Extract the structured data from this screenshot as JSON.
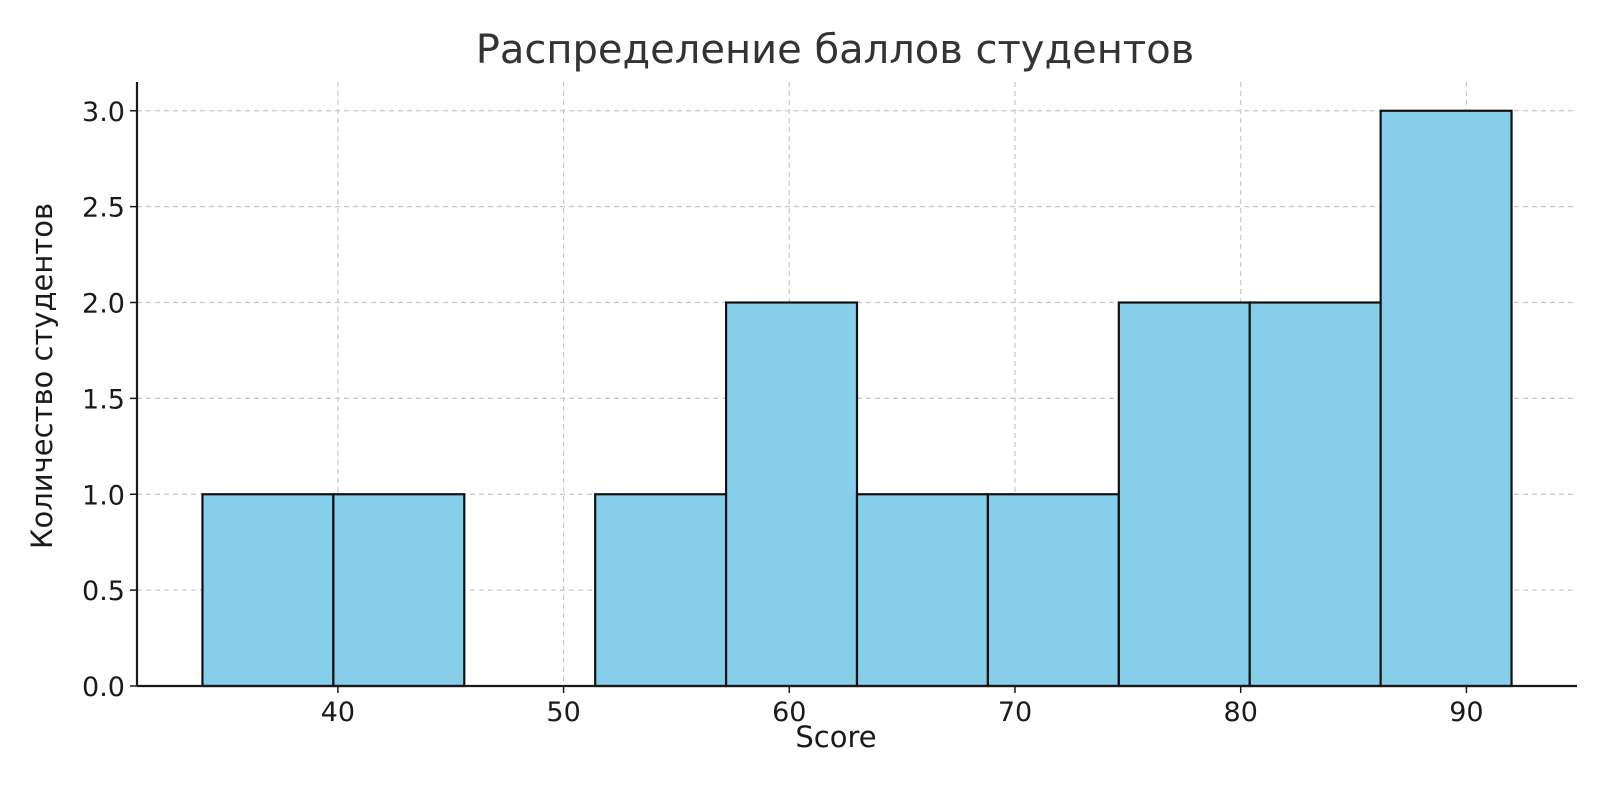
{
  "chart_data": {
    "type": "bar",
    "title": "Распределение баллов студентов",
    "xlabel": "Score",
    "ylabel": "Количество студентов",
    "bins": [
      {
        "start": 34.0,
        "end": 39.8,
        "count": 1
      },
      {
        "start": 39.8,
        "end": 45.6,
        "count": 1
      },
      {
        "start": 45.6,
        "end": 51.4,
        "count": 0
      },
      {
        "start": 51.4,
        "end": 57.2,
        "count": 1
      },
      {
        "start": 57.2,
        "end": 63.0,
        "count": 2
      },
      {
        "start": 63.0,
        "end": 68.8,
        "count": 1
      },
      {
        "start": 68.8,
        "end": 74.6,
        "count": 1
      },
      {
        "start": 74.6,
        "end": 80.4,
        "count": 2
      },
      {
        "start": 80.4,
        "end": 86.2,
        "count": 2
      },
      {
        "start": 86.2,
        "end": 92.0,
        "count": 3
      }
    ],
    "xlim": [
      31.1,
      94.9
    ],
    "ylim": [
      0,
      3.15
    ],
    "x_ticks": [
      40,
      50,
      60,
      70,
      80,
      90
    ],
    "y_ticks": [
      "0.0",
      "0.5",
      "1.0",
      "1.5",
      "2.0",
      "2.5",
      "3.0"
    ],
    "grid": true,
    "bar_color": "#87ceeb",
    "edge_color": "#111111"
  }
}
